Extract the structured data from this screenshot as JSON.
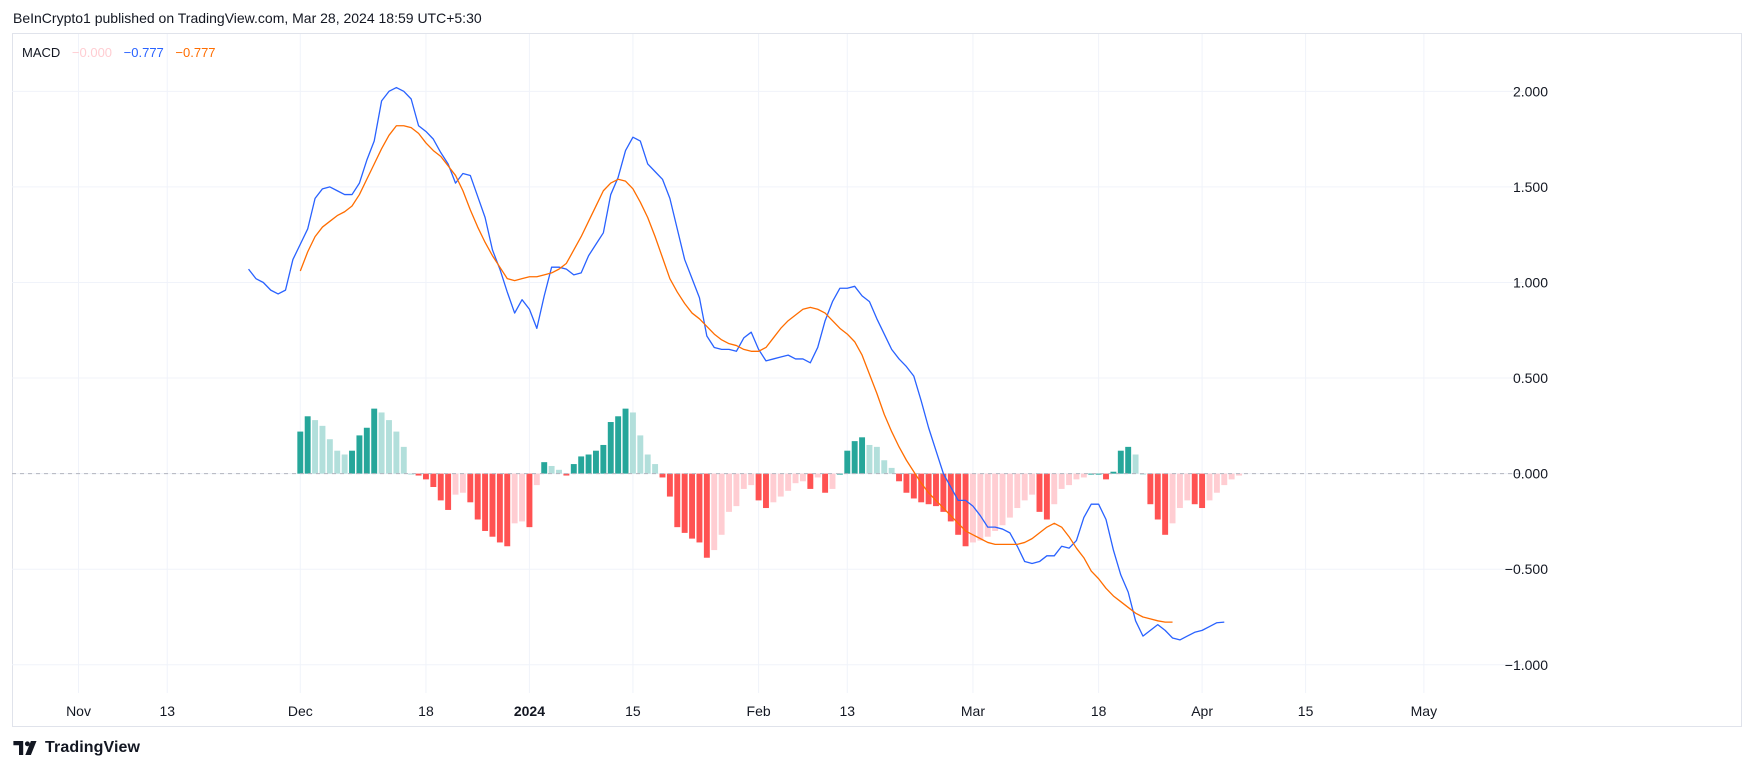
{
  "header": {
    "text": "BeInCrypto1 published on TradingView.com, Mar 28, 2024 18:59 UTC+5:30"
  },
  "legend": {
    "title": "MACD",
    "hist_value": "−0.000",
    "macd_value": "−0.777",
    "signal_value": "−0.777"
  },
  "footer": {
    "brand": "TradingView"
  },
  "colors": {
    "macd": "#2962ff",
    "signal": "#ff6d00",
    "hist_pos_strong": "#26a69a",
    "hist_pos_weak": "#b2dfdb",
    "hist_neg_strong": "#ff5252",
    "hist_neg_weak": "#ffcdd2",
    "grid": "#f0f3fa",
    "zero": "#b2b5be"
  },
  "chart_data": {
    "type": "line",
    "title": "MACD",
    "x_range": [
      "2023-10-24",
      "2024-05-09"
    ],
    "ylim": [
      -1.2,
      2.3
    ],
    "y_ticks": [
      "2.000",
      "1.500",
      "1.000",
      "0.500",
      "0.000",
      "−0.500",
      "−1.000"
    ],
    "y_tick_values": [
      2.0,
      1.5,
      1.0,
      0.5,
      0.0,
      -0.5,
      -1.0
    ],
    "x_ticks": [
      {
        "label": "Nov",
        "day": 9,
        "bold": false
      },
      {
        "label": "13",
        "day": 21,
        "bold": false
      },
      {
        "label": "Dec",
        "day": 39,
        "bold": false
      },
      {
        "label": "18",
        "day": 56,
        "bold": false
      },
      {
        "label": "2024",
        "day": 70,
        "bold": true
      },
      {
        "label": "15",
        "day": 84,
        "bold": false
      },
      {
        "label": "Feb",
        "day": 101,
        "bold": false
      },
      {
        "label": "13",
        "day": 113,
        "bold": false
      },
      {
        "label": "Mar",
        "day": 130,
        "bold": false
      },
      {
        "label": "18",
        "day": 147,
        "bold": false
      },
      {
        "label": "Apr",
        "day": 161,
        "bold": false
      },
      {
        "label": "15",
        "day": 175,
        "bold": false
      },
      {
        "label": "May",
        "day": 191,
        "bold": false
      }
    ],
    "x_day_origin": "2023-10-23",
    "series": [
      {
        "name": "MACD",
        "start_day": 32,
        "values": [
          1.07,
          1.02,
          1.0,
          0.96,
          0.94,
          0.96,
          1.12,
          1.2,
          1.28,
          1.44,
          1.49,
          1.5,
          1.48,
          1.46,
          1.46,
          1.52,
          1.64,
          1.74,
          1.95,
          2.0,
          2.02,
          2.0,
          1.96,
          1.82,
          1.79,
          1.75,
          1.68,
          1.62,
          1.52,
          1.57,
          1.56,
          1.45,
          1.34,
          1.17,
          1.07,
          0.95,
          0.84,
          0.91,
          0.86,
          0.76,
          0.93,
          1.08,
          1.08,
          1.07,
          1.04,
          1.05,
          1.14,
          1.2,
          1.26,
          1.46,
          1.55,
          1.69,
          1.76,
          1.74,
          1.62,
          1.58,
          1.54,
          1.44,
          1.28,
          1.12,
          1.02,
          0.92,
          0.72,
          0.66,
          0.65,
          0.65,
          0.64,
          0.71,
          0.74,
          0.65,
          0.59,
          0.6,
          0.61,
          0.62,
          0.6,
          0.6,
          0.58,
          0.66,
          0.8,
          0.9,
          0.97,
          0.97,
          0.98,
          0.93,
          0.9,
          0.81,
          0.73,
          0.65,
          0.6,
          0.56,
          0.51,
          0.38,
          0.24,
          0.12,
          0.0,
          -0.07,
          -0.14,
          -0.14,
          -0.17,
          -0.22,
          -0.28,
          -0.28,
          -0.29,
          -0.31,
          -0.38,
          -0.46,
          -0.47,
          -0.46,
          -0.43,
          -0.43,
          -0.38,
          -0.39,
          -0.35,
          -0.23,
          -0.16,
          -0.16,
          -0.24,
          -0.4,
          -0.53,
          -0.62,
          -0.77,
          -0.85,
          -0.82,
          -0.79,
          -0.82,
          -0.86,
          -0.87,
          -0.85,
          -0.83,
          -0.82,
          -0.8,
          -0.78,
          -0.777
        ]
      },
      {
        "name": "Signal",
        "start_day": 39,
        "values": [
          1.06,
          1.16,
          1.24,
          1.29,
          1.32,
          1.35,
          1.37,
          1.4,
          1.46,
          1.54,
          1.62,
          1.7,
          1.77,
          1.82,
          1.82,
          1.81,
          1.78,
          1.73,
          1.69,
          1.66,
          1.61,
          1.56,
          1.48,
          1.38,
          1.29,
          1.21,
          1.14,
          1.08,
          1.02,
          1.01,
          1.02,
          1.03,
          1.03,
          1.04,
          1.05,
          1.07,
          1.1,
          1.17,
          1.24,
          1.32,
          1.4,
          1.48,
          1.52,
          1.54,
          1.53,
          1.49,
          1.42,
          1.34,
          1.24,
          1.13,
          1.02,
          0.95,
          0.89,
          0.84,
          0.81,
          0.77,
          0.73,
          0.7,
          0.68,
          0.67,
          0.65,
          0.64,
          0.64,
          0.66,
          0.71,
          0.76,
          0.8,
          0.83,
          0.86,
          0.87,
          0.86,
          0.84,
          0.8,
          0.76,
          0.73,
          0.69,
          0.62,
          0.52,
          0.42,
          0.31,
          0.22,
          0.14,
          0.07,
          0.01,
          -0.05,
          -0.1,
          -0.14,
          -0.18,
          -0.22,
          -0.26,
          -0.3,
          -0.32,
          -0.34,
          -0.36,
          -0.37,
          -0.37,
          -0.37,
          -0.37,
          -0.36,
          -0.34,
          -0.31,
          -0.28,
          -0.26,
          -0.28,
          -0.33,
          -0.39,
          -0.44,
          -0.51,
          -0.55,
          -0.6,
          -0.64,
          -0.67,
          -0.7,
          -0.73,
          -0.75,
          -0.76,
          -0.77,
          -0.777,
          -0.777
        ]
      }
    ],
    "histogram": {
      "name": "Histogram",
      "start_day": 39,
      "values": [
        0.22,
        0.3,
        0.28,
        0.25,
        0.18,
        0.12,
        0.1,
        0.12,
        0.2,
        0.24,
        0.34,
        0.32,
        0.28,
        0.22,
        0.14,
        0.0,
        -0.01,
        -0.03,
        -0.07,
        -0.14,
        -0.19,
        -0.11,
        -0.1,
        -0.15,
        -0.24,
        -0.3,
        -0.33,
        -0.36,
        -0.38,
        -0.26,
        -0.25,
        -0.28,
        -0.06,
        0.06,
        0.04,
        0.02,
        -0.01,
        0.05,
        0.09,
        0.1,
        0.12,
        0.15,
        0.27,
        0.3,
        0.34,
        0.32,
        0.2,
        0.1,
        0.05,
        -0.02,
        -0.12,
        -0.28,
        -0.31,
        -0.34,
        -0.36,
        -0.44,
        -0.4,
        -0.32,
        -0.2,
        -0.17,
        -0.08,
        -0.06,
        -0.14,
        -0.18,
        -0.15,
        -0.12,
        -0.09,
        -0.05,
        -0.04,
        -0.08,
        -0.02,
        -0.1,
        -0.08,
        0.0,
        0.12,
        0.17,
        0.19,
        0.15,
        0.14,
        0.07,
        0.03,
        -0.04,
        -0.1,
        -0.13,
        -0.15,
        -0.16,
        -0.17,
        -0.2,
        -0.25,
        -0.32,
        -0.38,
        -0.36,
        -0.35,
        -0.33,
        -0.3,
        -0.27,
        -0.23,
        -0.18,
        -0.14,
        -0.11,
        -0.2,
        -0.24,
        -0.16,
        -0.08,
        -0.06,
        -0.03,
        -0.02,
        0.0,
        0.0,
        -0.03,
        0.01,
        0.12,
        0.14,
        0.1,
        0.0,
        -0.16,
        -0.24,
        -0.32,
        -0.26,
        -0.18,
        -0.14,
        -0.16,
        -0.18,
        -0.14,
        -0.1,
        -0.06,
        -0.03,
        -0.01
      ]
    },
    "zero_line": 0.0
  }
}
